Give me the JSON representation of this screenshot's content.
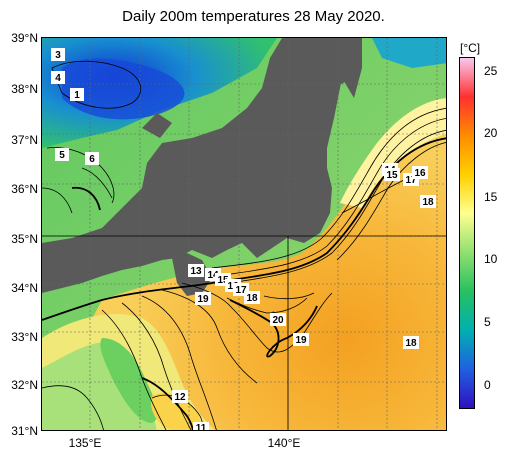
{
  "title": "Daily 200m temperatures 28 May 2020.",
  "lat_labels": [
    "39°N",
    "38°N",
    "37°N",
    "36°N",
    "35°N",
    "34°N",
    "33°N",
    "32°N",
    "31°N"
  ],
  "lon_labels": [
    "135°E",
    "140°E"
  ],
  "colorbar": {
    "unit": "[°C]",
    "ticks": [
      "25",
      "20",
      "15",
      "10",
      "5",
      "0"
    ],
    "colors": [
      "#f8c8f0",
      "#ff3030",
      "#ff8c00",
      "#ffd000",
      "#ffff90",
      "#90e070",
      "#28c060",
      "#00b0b0",
      "#2060e0",
      "#3010c0"
    ]
  },
  "contour_labels": [
    "3",
    "4",
    "1",
    "5",
    "6",
    "13",
    "14",
    "15",
    "16",
    "17",
    "18",
    "19",
    "20",
    "19",
    "18",
    "14",
    "15",
    "17",
    "16",
    "18",
    "12",
    "11"
  ]
}
